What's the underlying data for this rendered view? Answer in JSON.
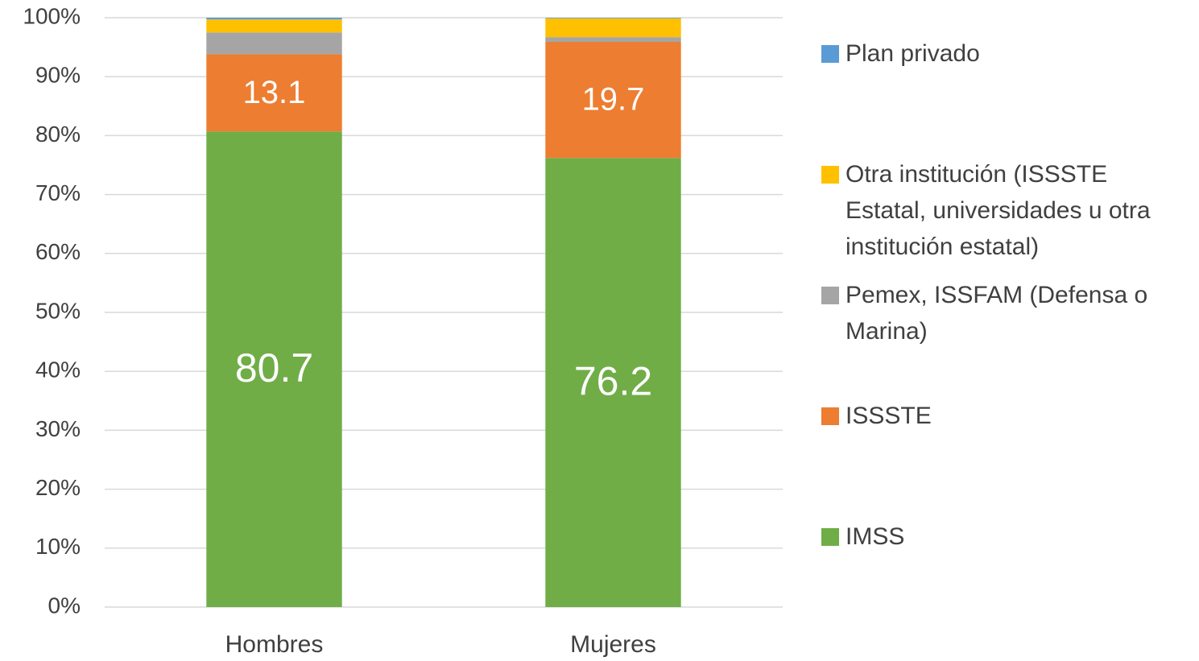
{
  "chart_data": {
    "type": "stacked_bar",
    "categories": [
      "Hombres",
      "Mujeres"
    ],
    "series": [
      {
        "name": "IMSS",
        "color": "#70ad47",
        "values": [
          80.7,
          76.2
        ],
        "show_labels": true
      },
      {
        "name": "ISSSTE",
        "color": "#ed7d31",
        "values": [
          13.1,
          19.7
        ],
        "show_labels": true
      },
      {
        "name": "Pemex, ISSFAM (Defensa o Marina)",
        "color": "#a5a5a5",
        "values": [
          3.7,
          0.8
        ],
        "show_labels": false
      },
      {
        "name": "Otra institución (ISSSTE Estatal, universidades u otra institución estatal)",
        "color": "#ffc000",
        "values": [
          2.2,
          3.2
        ],
        "show_labels": false
      },
      {
        "name": "Plan privado",
        "color": "#5b9bd5",
        "values": [
          0.3,
          0.1
        ],
        "show_labels": false
      }
    ],
    "ylim": [
      0,
      100
    ],
    "yticks": [
      {
        "value": 0,
        "label": "0%"
      },
      {
        "value": 10,
        "label": "10%"
      },
      {
        "value": 20,
        "label": "20%"
      },
      {
        "value": 30,
        "label": "30%"
      },
      {
        "value": 40,
        "label": "40%"
      },
      {
        "value": 50,
        "label": "50%"
      },
      {
        "value": 60,
        "label": "60%"
      },
      {
        "value": 70,
        "label": "70%"
      },
      {
        "value": 80,
        "label": "80%"
      },
      {
        "value": 90,
        "label": "90%"
      },
      {
        "value": 100,
        "label": "100%"
      }
    ],
    "grid": true,
    "legend": "right"
  }
}
